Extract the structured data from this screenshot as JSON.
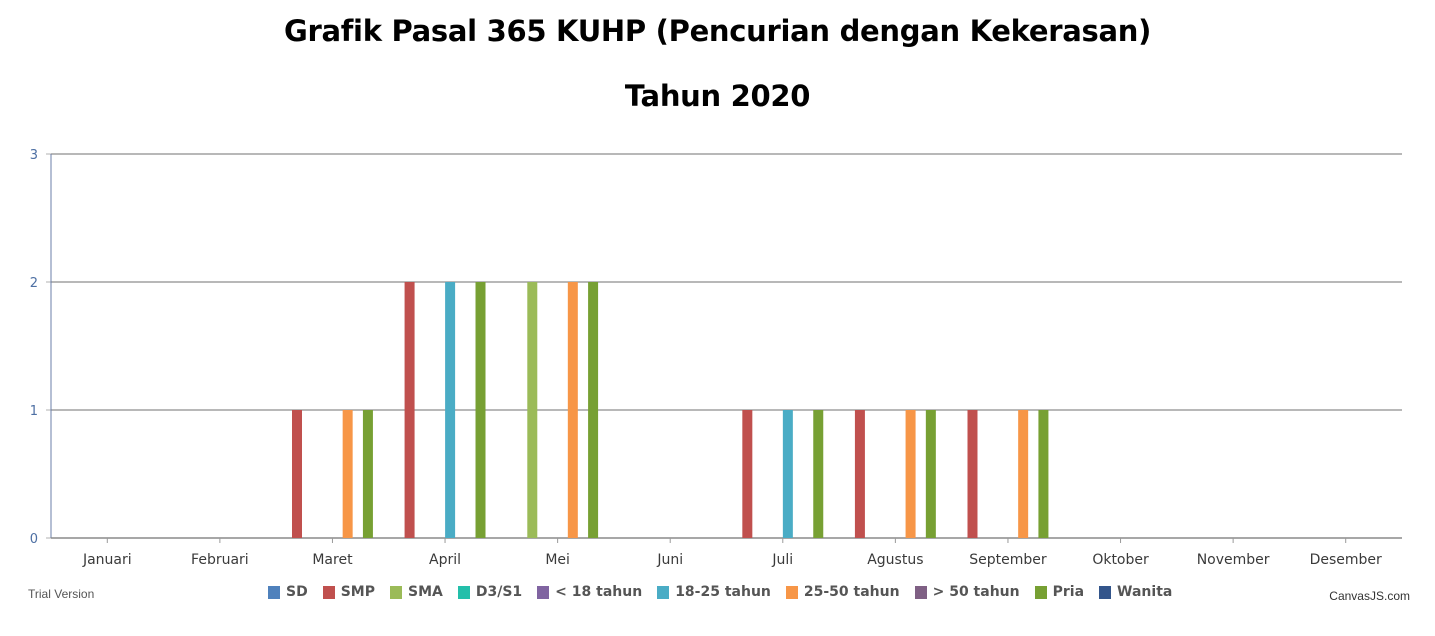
{
  "chart_data": {
    "type": "bar",
    "title": "Grafik Pasal 365 KUHP (Pencurian dengan Kekerasan)",
    "subtitle": "Tahun 2020",
    "categories": [
      "Januari",
      "Februari",
      "Maret",
      "April",
      "Mei",
      "Juni",
      "Juli",
      "Agustus",
      "September",
      "Oktober",
      "November",
      "Desember"
    ],
    "ylim": [
      0,
      3
    ],
    "yticks": [
      "0",
      "1",
      "2",
      "3"
    ],
    "grid": true,
    "legend_position": "bottom",
    "series": [
      {
        "name": "SD",
        "color": "#4f81bc",
        "values": [
          0,
          0,
          0,
          0,
          0,
          0,
          0,
          0,
          0,
          0,
          0,
          0
        ]
      },
      {
        "name": "SMP",
        "color": "#c0504e",
        "values": [
          0,
          0,
          1,
          2,
          0,
          0,
          1,
          1,
          1,
          0,
          0,
          0
        ]
      },
      {
        "name": "SMA",
        "color": "#9bbb58",
        "values": [
          0,
          0,
          0,
          0,
          2,
          0,
          0,
          0,
          0,
          0,
          0,
          0
        ]
      },
      {
        "name": "D3/S1",
        "color": "#23bfaa",
        "values": [
          0,
          0,
          0,
          0,
          0,
          0,
          0,
          0,
          0,
          0,
          0,
          0
        ]
      },
      {
        "name": "< 18 tahun",
        "color": "#8064a1",
        "values": [
          0,
          0,
          0,
          0,
          0,
          0,
          0,
          0,
          0,
          0,
          0,
          0
        ]
      },
      {
        "name": "18-25 tahun",
        "color": "#4aacc5",
        "values": [
          0,
          0,
          0,
          2,
          0,
          0,
          1,
          0,
          0,
          0,
          0,
          0
        ]
      },
      {
        "name": "25-50 tahun",
        "color": "#f79647",
        "values": [
          0,
          0,
          1,
          0,
          2,
          0,
          0,
          1,
          1,
          0,
          0,
          0
        ]
      },
      {
        "name": "> 50 tahun",
        "color": "#7f6084",
        "values": [
          0,
          0,
          0,
          0,
          0,
          0,
          0,
          0,
          0,
          0,
          0,
          0
        ]
      },
      {
        "name": "Pria",
        "color": "#77a033",
        "values": [
          0,
          0,
          1,
          2,
          2,
          0,
          1,
          1,
          1,
          0,
          0,
          0
        ]
      },
      {
        "name": "Wanita",
        "color": "#33558b",
        "values": [
          0,
          0,
          0,
          0,
          0,
          0,
          0,
          0,
          0,
          0,
          0,
          0
        ]
      }
    ]
  },
  "footer": {
    "left": "Trial Version",
    "right": "CanvasJS.com"
  }
}
